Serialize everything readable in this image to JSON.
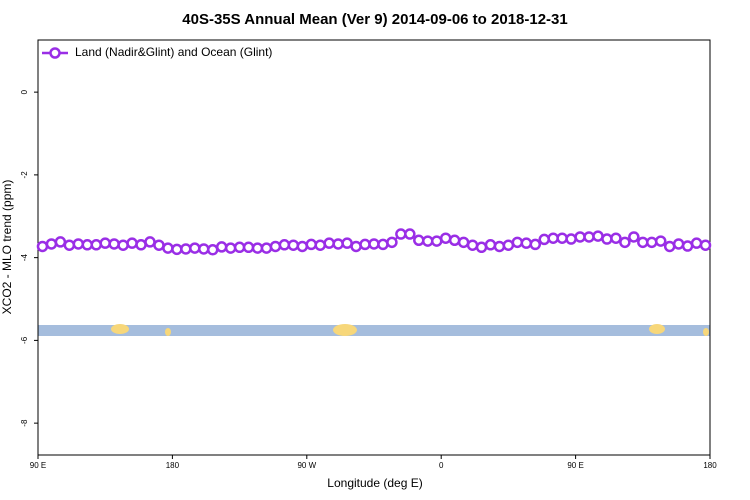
{
  "chart_data": {
    "type": "line",
    "title": "40S-35S Annual Mean (Ver 9)   2014-09-06 to 2018-12-31",
    "x_label": "Longitude (deg E)",
    "y_label": "XCO2 - MLO trend (ppm)",
    "xlim": [
      90,
      540
    ],
    "xticks": [
      {
        "value": 90,
        "label": "90 E"
      },
      180,
      {
        "value": 270,
        "label": "90 W"
      },
      {
        "value": 360,
        "label": "0"
      },
      {
        "value": 450,
        "label": "90 E"
      },
      {
        "value": 540,
        "label": "180"
      }
    ],
    "ylim": [
      -8.77,
      1.26
    ],
    "yticks": [
      0,
      -2,
      -4,
      -6,
      -8
    ],
    "legend": "upper left",
    "x": [
      93,
      99,
      105,
      111,
      117,
      123,
      129,
      135,
      141,
      147,
      153,
      159,
      165,
      171,
      177,
      183,
      189,
      195,
      201,
      207,
      213,
      219,
      225,
      231,
      237,
      243,
      249,
      255,
      261,
      267,
      273,
      279,
      285,
      291,
      297,
      303,
      309,
      315,
      321,
      327,
      333,
      339,
      345,
      351,
      357,
      363,
      369,
      375,
      381,
      387,
      393,
      399,
      405,
      411,
      417,
      423,
      429,
      435,
      441,
      447,
      453,
      459,
      465,
      471,
      477,
      483,
      489,
      495,
      501,
      507,
      513,
      519,
      525,
      531,
      537
    ],
    "series": [
      {
        "name": "Land (Nadir&Glint) and Ocean (Glint)",
        "color": "#9a2ee6",
        "values": [
          -3.73,
          -3.67,
          -3.62,
          -3.7,
          -3.67,
          -3.69,
          -3.69,
          -3.65,
          -3.67,
          -3.7,
          -3.65,
          -3.69,
          -3.62,
          -3.7,
          -3.77,
          -3.8,
          -3.79,
          -3.77,
          -3.79,
          -3.81,
          -3.74,
          -3.77,
          -3.75,
          -3.75,
          -3.77,
          -3.77,
          -3.73,
          -3.69,
          -3.7,
          -3.73,
          -3.68,
          -3.7,
          -3.65,
          -3.67,
          -3.65,
          -3.73,
          -3.68,
          -3.67,
          -3.68,
          -3.63,
          -3.43,
          -3.43,
          -3.58,
          -3.6,
          -3.6,
          -3.53,
          -3.58,
          -3.63,
          -3.7,
          -3.75,
          -3.69,
          -3.73,
          -3.7,
          -3.63,
          -3.65,
          -3.68,
          -3.56,
          -3.53,
          -3.53,
          -3.55,
          -3.5,
          -3.5,
          -3.48,
          -3.55,
          -3.53,
          -3.63,
          -3.5,
          -3.63,
          -3.63,
          -3.6,
          -3.73,
          -3.67,
          -3.72,
          -3.65,
          -3.7
        ]
      }
    ]
  }
}
